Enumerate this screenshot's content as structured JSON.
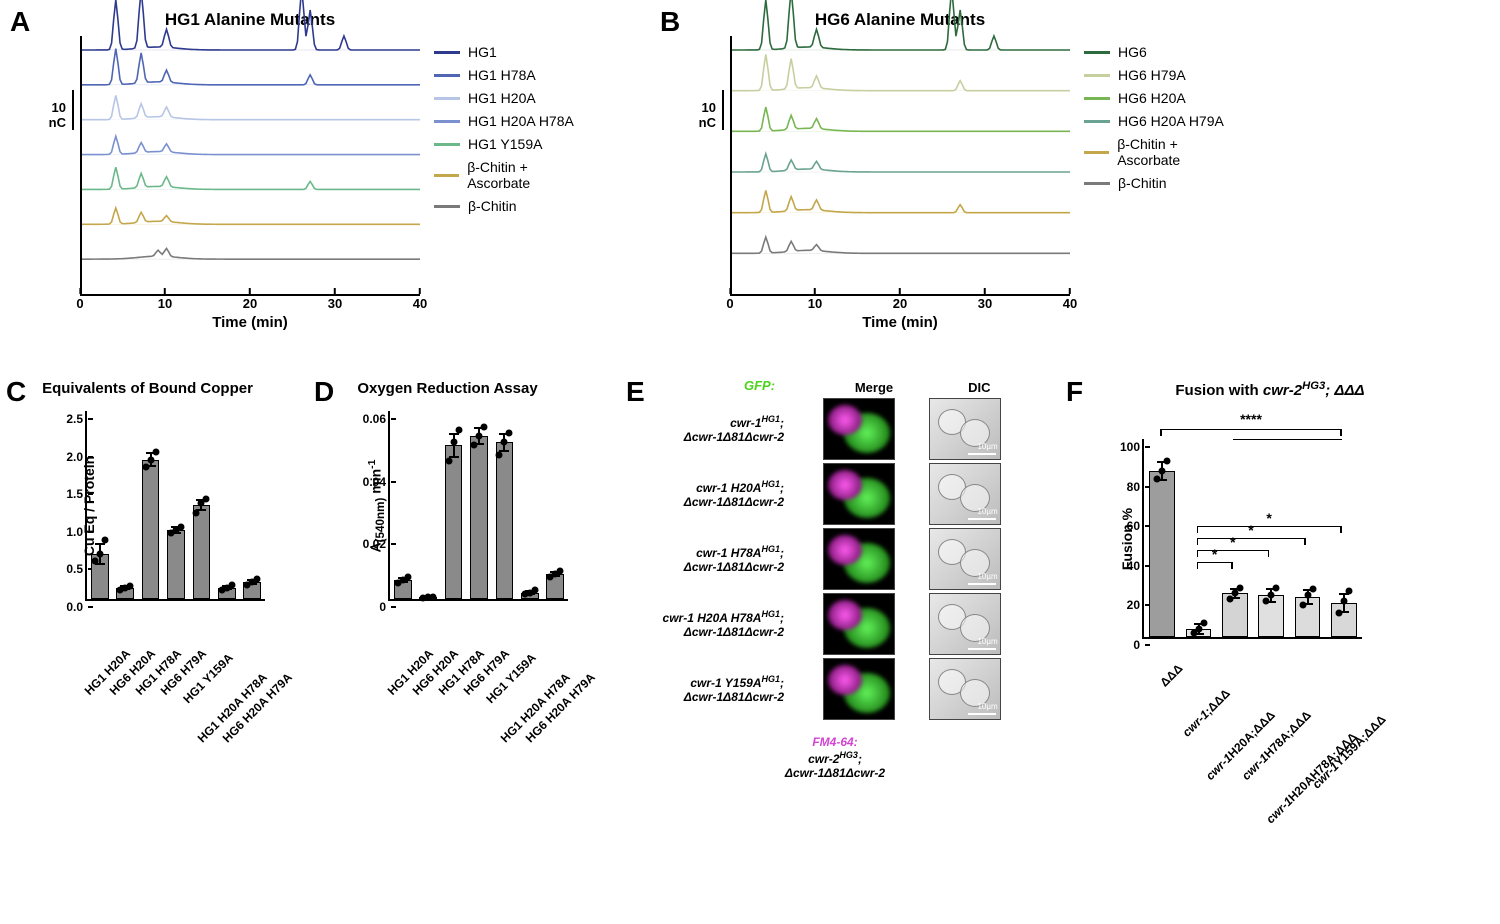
{
  "panelA": {
    "letter": "A",
    "title": "HG1 Alanine Mutants",
    "y_scale": "10 nC",
    "x_label": "Time (min)",
    "x_ticks": [
      0,
      10,
      20,
      30,
      40
    ],
    "xlim": [
      0,
      40
    ],
    "legend": [
      {
        "label": "HG1",
        "color": "#2e3a8e"
      },
      {
        "label": "HG1 H78A",
        "color": "#4f66b5"
      },
      {
        "label": "HG1 H20A",
        "color": "#b7c6e6"
      },
      {
        "label": "HG1 H20A H78A",
        "color": "#7b91cf"
      },
      {
        "label": "HG1 Y159A",
        "color": "#6bb88a"
      },
      {
        "label": "β-Chitin + Ascorbate",
        "color": "#c4a74a"
      },
      {
        "label": "β-Chitin",
        "color": "#7a7a7a"
      }
    ]
  },
  "panelB": {
    "letter": "B",
    "title": "HG6 Alanine Mutants",
    "y_scale": "10 nC",
    "x_label": "Time (min)",
    "x_ticks": [
      0,
      10,
      20,
      30,
      40
    ],
    "xlim": [
      0,
      40
    ],
    "legend": [
      {
        "label": "HG6",
        "color": "#2d6b3e"
      },
      {
        "label": "HG6 H79A",
        "color": "#c6cfa0"
      },
      {
        "label": "HG6 H20A",
        "color": "#78b653"
      },
      {
        "label": "HG6 H20A H79A",
        "color": "#6aa391"
      },
      {
        "label": "β-Chitin + Ascorbate",
        "color": "#c4a74a"
      },
      {
        "label": "β-Chitin",
        "color": "#7a7a7a"
      }
    ]
  },
  "panelC": {
    "letter": "C",
    "title": "Equivalents of Bound Copper",
    "y_label": "Cu Eq / Protein",
    "ylim": [
      0,
      2.5
    ],
    "y_ticks": [
      0,
      0.5,
      1.0,
      1.5,
      2.0,
      2.5
    ],
    "bar_color": "#8a8a8a",
    "categories": [
      "HG1 H20A",
      "HG6 H20A",
      "HG1 H78A",
      "HG6 H79A",
      "HG1 Y159A",
      "HG1 H20A H78A",
      "HG6 H20A H79A"
    ],
    "means": [
      0.6,
      0.15,
      1.85,
      0.92,
      1.25,
      0.15,
      0.22
    ],
    "errors": [
      0.15,
      0.03,
      0.1,
      0.05,
      0.08,
      0.03,
      0.04
    ],
    "points": [
      [
        0.5,
        0.6,
        0.78
      ],
      [
        0.12,
        0.15,
        0.17
      ],
      [
        1.75,
        1.85,
        1.95
      ],
      [
        0.88,
        0.92,
        0.96
      ],
      [
        1.15,
        1.28,
        1.33
      ],
      [
        0.12,
        0.15,
        0.18
      ],
      [
        0.18,
        0.22,
        0.26
      ]
    ]
  },
  "panelD": {
    "letter": "D",
    "title": "Oxygen Reduction Assay",
    "y_label_html": "A<sub>(540nm)</sub> min<sup>-1</sup>",
    "ylim": [
      0,
      0.06
    ],
    "y_ticks": [
      0,
      0.02,
      0.04,
      0.06
    ],
    "bar_color": "#8a8a8a",
    "categories": [
      "HG1 H20A",
      "HG6 H20A",
      "HG1 H78A",
      "HG6 H79A",
      "HG1 Y159A",
      "HG1 H20A H78A",
      "HG6 H20A H79A"
    ],
    "means": [
      0.006,
      0.0005,
      0.049,
      0.052,
      0.05,
      0.002,
      0.008
    ],
    "errors": [
      0.001,
      0.0003,
      0.004,
      0.003,
      0.003,
      0.0008,
      0.001
    ],
    "points": [
      [
        0.005,
        0.006,
        0.007
      ],
      [
        0.0003,
        0.0005,
        0.0007
      ],
      [
        0.044,
        0.05,
        0.054
      ],
      [
        0.049,
        0.052,
        0.055
      ],
      [
        0.046,
        0.05,
        0.053
      ],
      [
        0.0015,
        0.002,
        0.0028
      ],
      [
        0.007,
        0.008,
        0.009
      ]
    ]
  },
  "panelE": {
    "letter": "E",
    "gfp_label": "GFP:",
    "gfp_color": "#4cd31c",
    "fm_label": "FM4-64:",
    "fm_color": "#d244d2",
    "col_headers": [
      "Merge",
      "DIC"
    ],
    "rows": [
      {
        "line1": "cwr-1",
        "sup": "HG1",
        "line2": "Δcwr-1Δ81Δcwr-2"
      },
      {
        "line1": "cwr-1 H20A",
        "sup": "HG1",
        "line2": "Δcwr-1Δ81Δcwr-2"
      },
      {
        "line1": "cwr-1 H78A",
        "sup": "HG1",
        "line2": "Δcwr-1Δ81Δcwr-2"
      },
      {
        "line1": "cwr-1 H20A H78A",
        "sup": "HG1",
        "line2": "Δcwr-1Δ81Δcwr-2"
      },
      {
        "line1": "cwr-1 Y159A",
        "sup": "HG1",
        "line2": "Δcwr-1Δ81Δcwr-2"
      }
    ],
    "bottom_line1": "cwr-2",
    "bottom_sup": "HG3",
    "bottom_line2": "Δcwr-1Δ81Δcwr-2",
    "scalebar_label": "10µm",
    "merge_bg": "#000000",
    "dic_bg": "#cfcfcf"
  },
  "panelF": {
    "letter": "F",
    "title_html": "Fusion with <i>cwr-2<sup>HG3</sup>; ΔΔΔ</i>",
    "y_label": "Fusion %",
    "ylim": [
      0,
      100
    ],
    "y_ticks": [
      0,
      20,
      40,
      60,
      80,
      100
    ],
    "bar_colors": [
      "#9d9d9d",
      "#e6e6e6",
      "#d4d4d4",
      "#e0e0e0",
      "#dcdcdc",
      "#d8d8d8"
    ],
    "categories_html": [
      "ΔΔΔ",
      "<i>cwr-1</i>;ΔΔΔ",
      "<i>cwr-1</i>H20A;ΔΔΔ",
      "<i>cwr-1</i>H78A;ΔΔΔ",
      "<i>cwr-1</i>H20AH78A;ΔΔΔ",
      "<i>cwr-1</i>Y159A;ΔΔΔ"
    ],
    "means": [
      84,
      4,
      22,
      21,
      20,
      17
    ],
    "errors": [
      5,
      3,
      3,
      4,
      4,
      5
    ],
    "points": [
      [
        80,
        84,
        89
      ],
      [
        2,
        4,
        7
      ],
      [
        19,
        22,
        25
      ],
      [
        18,
        21,
        25
      ],
      [
        16,
        21,
        24
      ],
      [
        12,
        18,
        23
      ]
    ],
    "sig": [
      {
        "from": 1,
        "to": 1,
        "stars": "****",
        "y": 102
      },
      {
        "from": 1,
        "to": 2,
        "stars": "*",
        "y": 38
      },
      {
        "from": 1,
        "to": 3,
        "stars": "*",
        "y": 44
      },
      {
        "from": 1,
        "to": 4,
        "stars": "*",
        "y": 50
      },
      {
        "from": 1,
        "to": 5,
        "stars": "*",
        "y": 56
      }
    ]
  }
}
